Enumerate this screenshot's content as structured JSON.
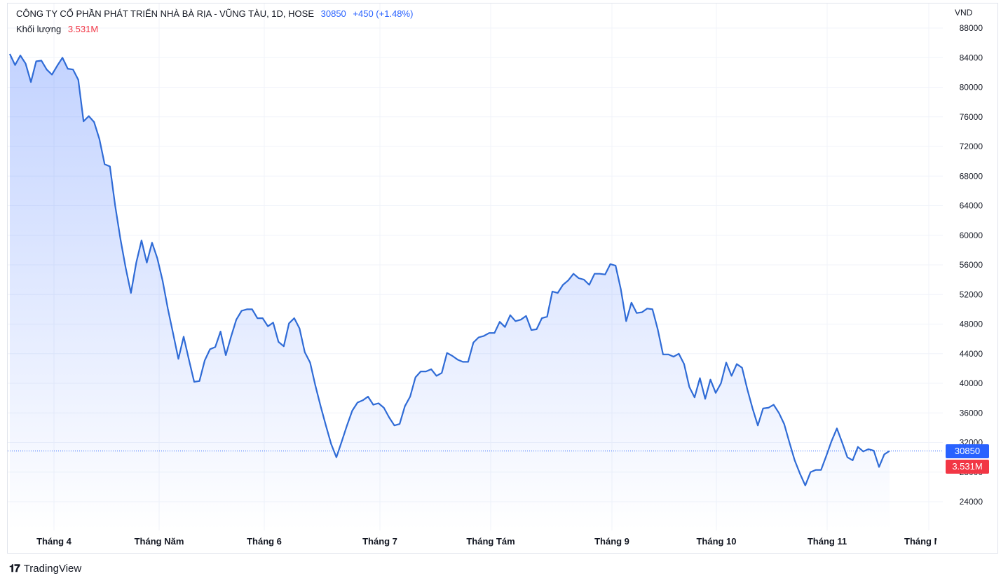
{
  "header": {
    "symbol_line": "CÔNG TY CỔ PHẦN PHÁT TRIỂN NHÀ BÀ RỊA - VŨNG TÀU, 1D, HOSE",
    "last_price": "30850",
    "change": "+450 (+1.48%)",
    "volume_label": "Khối lượng",
    "volume_value": "3.531M"
  },
  "price_tag": "30850",
  "volume_tag": "3.531M",
  "logo_text": "TradingView",
  "colors": {
    "line": "#2f6bd6",
    "accent": "#2962ff",
    "volume": "#f23645"
  },
  "chart_data": {
    "type": "area",
    "currency": "VND",
    "ylim": [
      20000,
      90000
    ],
    "y_ticks": [
      24000,
      28000,
      32000,
      36000,
      40000,
      44000,
      48000,
      52000,
      56000,
      60000,
      64000,
      68000,
      72000,
      76000,
      80000,
      84000,
      88000
    ],
    "x_ticks": [
      "Tháng 4",
      "Tháng Năm",
      "Tháng 6",
      "Tháng 7",
      "Tháng Tám",
      "Tháng 9",
      "Tháng 10",
      "Tháng 11",
      "Tháng Mười Hai"
    ],
    "last_value": 30850,
    "grid": true,
    "values": [
      84500,
      83000,
      84300,
      83200,
      80700,
      83500,
      83600,
      82400,
      81700,
      82900,
      84000,
      82500,
      82400,
      81000,
      75400,
      76100,
      75300,
      73000,
      69600,
      69300,
      64000,
      59500,
      55600,
      52200,
      56300,
      59300,
      56300,
      59000,
      56900,
      53900,
      50100,
      46700,
      43300,
      46300,
      43200,
      40200,
      40300,
      43100,
      44600,
      44900,
      47000,
      43800,
      46300,
      48600,
      49800,
      50000,
      50000,
      48800,
      48800,
      47700,
      48200,
      45600,
      45000,
      48100,
      48800,
      47400,
      44200,
      42800,
      39700,
      36900,
      34300,
      31800,
      30000,
      32100,
      34300,
      36300,
      37400,
      37700,
      38200,
      37100,
      37300,
      36700,
      35400,
      34300,
      34500,
      36900,
      38200,
      40800,
      41600,
      41600,
      41900,
      41000,
      41400,
      44100,
      43700,
      43200,
      42900,
      42900,
      45500,
      46200,
      46400,
      46800,
      46800,
      48300,
      47600,
      49200,
      48400,
      48600,
      49100,
      47200,
      47300,
      48800,
      49000,
      52400,
      52200,
      53300,
      53900,
      54800,
      54200,
      54000,
      53300,
      54800,
      54800,
      54700,
      56100,
      55900,
      52700,
      48400,
      50900,
      49500,
      49600,
      50100,
      50000,
      47300,
      43900,
      43900,
      43600,
      44000,
      42600,
      39500,
      38100,
      40700,
      37900,
      40500,
      38700,
      40000,
      42800,
      41000,
      42600,
      42100,
      39200,
      36600,
      34300,
      36600,
      36700,
      37100,
      36000,
      34500,
      32000,
      29600,
      27800,
      26200,
      28000,
      28300,
      28300,
      30200,
      32200,
      33900,
      32000,
      30000,
      29600,
      31400,
      30800,
      31100,
      30900,
      28700,
      30400,
      30850
    ]
  }
}
